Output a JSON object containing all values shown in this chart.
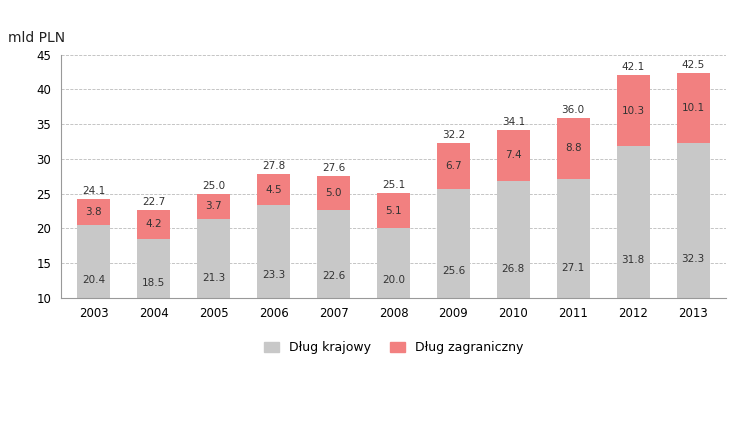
{
  "years": [
    2003,
    2004,
    2005,
    2006,
    2007,
    2008,
    2009,
    2010,
    2011,
    2012,
    2013
  ],
  "domestic": [
    20.4,
    18.5,
    21.3,
    23.3,
    22.6,
    20.0,
    25.6,
    26.8,
    27.1,
    31.8,
    32.3
  ],
  "foreign": [
    3.8,
    4.2,
    3.7,
    4.5,
    5.0,
    5.1,
    6.7,
    7.4,
    8.8,
    10.3,
    10.1
  ],
  "totals": [
    24.1,
    22.7,
    25.0,
    27.8,
    27.6,
    25.1,
    32.2,
    34.1,
    36.0,
    42.1,
    42.5
  ],
  "color_domestic": "#c8c8c8",
  "color_foreign": "#f28080",
  "ylim_min": 10,
  "ylim_max": 45,
  "yticks": [
    10,
    15,
    20,
    25,
    30,
    35,
    40,
    45
  ],
  "top_label": "mld PLN",
  "legend_domestic": "Dług krajowy",
  "legend_foreign": "Dług zagraniczny",
  "bar_width": 0.55,
  "background_color": "#ffffff",
  "grid_color": "#bbbbbb"
}
